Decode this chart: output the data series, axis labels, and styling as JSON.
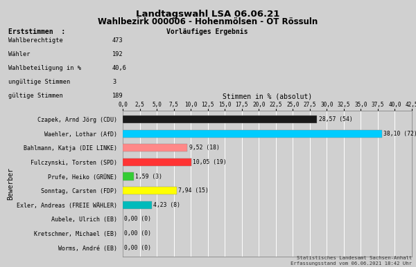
{
  "title1": "Landtagswahl LSA 06.06.21",
  "title2": "Wahlbezirk 000006 - Hohenmölsen - OT Rössuln",
  "erststimmen_label": "Erststimmen  :",
  "vorlaeufig_label": "Vorläufiges Ergebnis",
  "stats": [
    [
      "Wahlberechtigte",
      "473"
    ],
    [
      "Wähler",
      "192"
    ],
    [
      "Wahlbeteiligung in %",
      "40,6"
    ],
    [
      "ungültige Stimmen",
      "3"
    ],
    [
      "gültige Stimmen",
      "189"
    ]
  ],
  "xlabel": "Stimmen in % (absolut)",
  "ylabel": "Bewerber",
  "xlim": [
    0,
    42.5
  ],
  "xticks": [
    0.0,
    2.5,
    5.0,
    7.5,
    10.0,
    12.5,
    15.0,
    17.5,
    20.0,
    22.5,
    25.0,
    27.5,
    30.0,
    32.5,
    35.0,
    37.5,
    40.0,
    42.5
  ],
  "xtick_labels": [
    "0,0",
    "2,5",
    "5,0",
    "7,5",
    "10,0",
    "12,5",
    "15,0",
    "17,5",
    "20,0",
    "22,5",
    "25,0",
    "27,5",
    "30,0",
    "32,5",
    "35,0",
    "37,5",
    "40,0",
    "42,5"
  ],
  "candidates": [
    "Czapek, Arnd Jörg (CDU)",
    "Waehler, Lothar (AfD)",
    "Bahlmann, Katja (DIE LINKE)",
    "Fulczynski, Torsten (SPD)",
    "Prufe, Heiko (GRÜNE)",
    "Sonntag, Carsten (FDP)",
    "Exler, Andreas (FREIE WÄHLER)",
    "Aubele, Ulrich (EB)",
    "Kretschmer, Michael (EB)",
    "Worms, André (EB)"
  ],
  "values": [
    28.57,
    38.1,
    9.52,
    10.05,
    1.59,
    7.94,
    4.23,
    0.0,
    0.0,
    0.0
  ],
  "value_labels": [
    "28,57 (54)",
    "38,10 (72)",
    "9,52 (18)",
    "10,05 (19)",
    "1,59 (3)",
    "7,94 (15)",
    "4,23 (8)",
    "0,00 (0)",
    "0,00 (0)",
    "0,00 (0)"
  ],
  "colors": [
    "#1a1a1a",
    "#00ccff",
    "#ff8888",
    "#ff3333",
    "#33cc33",
    "#ffff00",
    "#00bbbb",
    "#bbbbbb",
    "#bbbbbb",
    "#bbbbbb"
  ],
  "bar_height": 0.55,
  "bg_color": "#d0d0d0",
  "footer1": "Statistisches Landesamt Sachsen-Anhalt",
  "footer2": "Erfassungsstand vom 06.06.2021 18:42 Uhr"
}
